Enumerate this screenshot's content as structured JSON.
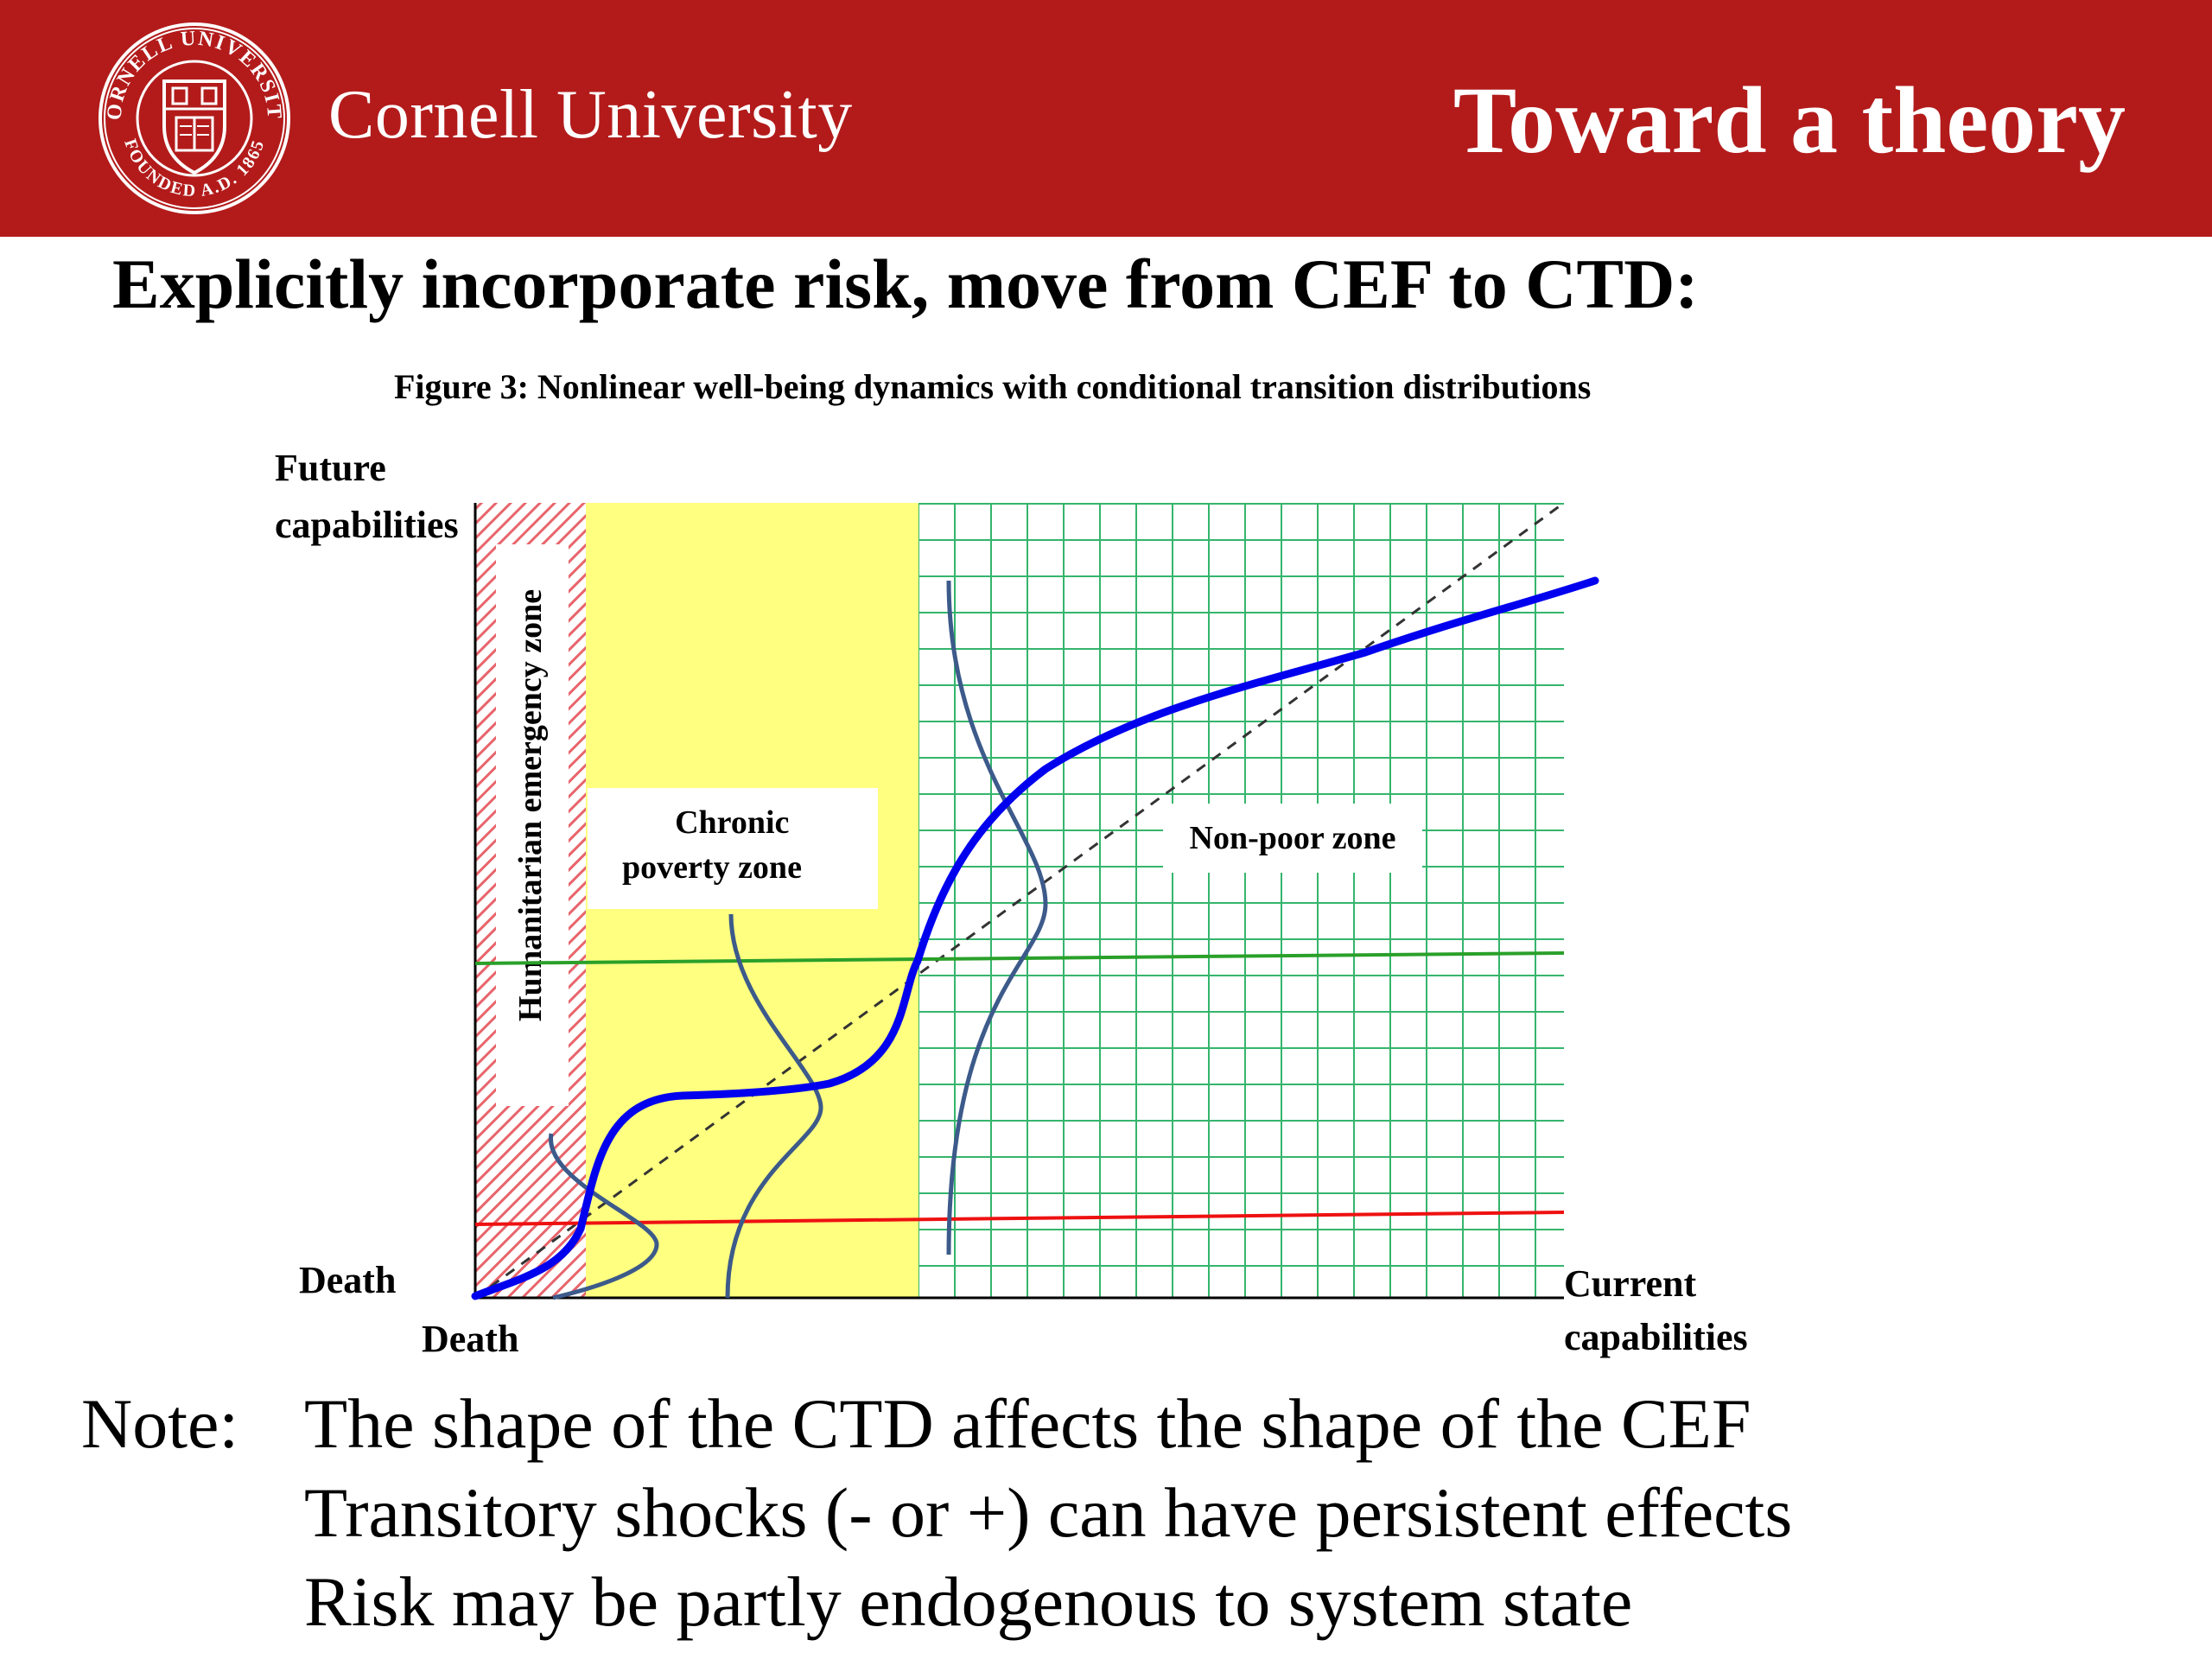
{
  "header": {
    "brand_name": "Cornell University",
    "slide_title": "Toward a theory",
    "background_color": "#b31b1b",
    "seal": {
      "top_text": "CORNELL UNIVERSITY",
      "bottom_text": "FOUNDED A.D. 1865"
    }
  },
  "heading": "Explicitly incorporate risk, move from CEF to CTD:",
  "figure": {
    "caption": "Figure 3: Nonlinear well-being dynamics with conditional transition distributions",
    "y_axis_label": [
      "Future",
      "capabilities"
    ],
    "x_axis_label": [
      "Current",
      "capabilities"
    ],
    "y_origin_label": "Death",
    "x_origin_label": "Death",
    "zones": {
      "humanitarian": "Humanitarian emergency zone",
      "chronic": [
        "Chronic",
        "poverty zone"
      ],
      "nonpoor": "Non-poor zone"
    },
    "colors": {
      "humanitarian_hatch": "#e8646b",
      "chronic_fill": "#ffff80",
      "nonpoor_grid": "#35b56c",
      "cef_curve": "#0000ee",
      "ctd_curves": "#3c5a8a",
      "upper_threshold": "#2aa02a",
      "lower_threshold": "#ee1111"
    }
  },
  "note": {
    "prefix": "Note:",
    "lines": [
      "The shape of the CTD affects the shape of the CEF",
      "Transitory shocks (- or +) can have persistent effects",
      "Risk may be partly endogenous to system state"
    ]
  }
}
